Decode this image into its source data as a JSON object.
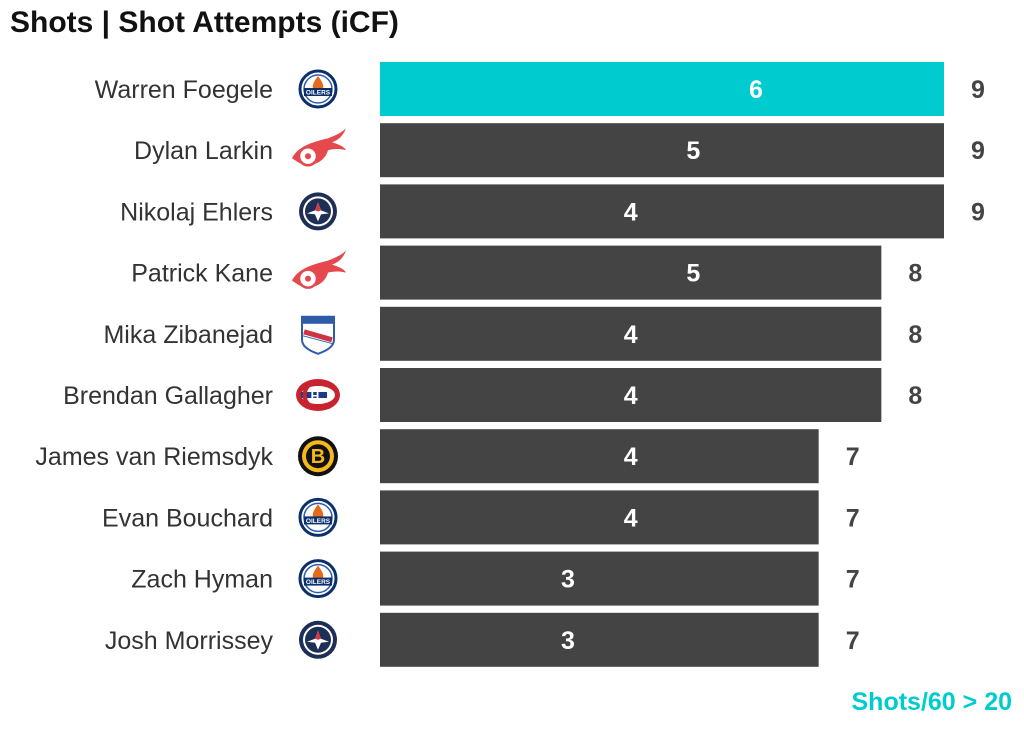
{
  "title": "Shots | Shot Attempts (iCF)",
  "footnote": "Shots/60 > 20",
  "colors": {
    "highlight": "#00ccd0",
    "bar": "#444444",
    "player_text": "#333333",
    "total_text": "#444444",
    "inner_text": "#ffffff"
  },
  "chart_data": {
    "type": "bar",
    "orientation": "horizontal",
    "xlim": [
      0,
      9
    ],
    "grid": false,
    "categories": [
      "Warren Foegele",
      "Dylan Larkin",
      "Nikolaj Ehlers",
      "Patrick Kane",
      "Mika Zibanejad",
      "Brendan Gallagher",
      "James van Riemsdyk",
      "Evan Bouchard",
      "Zach Hyman",
      "Josh Morrissey"
    ],
    "team_logos": [
      "oilers-logo-icon",
      "red-wings-logo-icon",
      "jets-logo-icon",
      "red-wings-logo-icon",
      "rangers-logo-icon",
      "canadiens-logo-icon",
      "bruins-logo-icon",
      "oilers-logo-icon",
      "oilers-logo-icon",
      "jets-logo-icon"
    ],
    "series": [
      {
        "values": [
          6,
          5,
          4,
          5,
          4,
          4,
          4,
          4,
          3,
          3
        ]
      },
      {
        "values": [
          9,
          9,
          9,
          8,
          8,
          8,
          7,
          7,
          7,
          7
        ]
      }
    ],
    "highlighted_index": 0
  }
}
